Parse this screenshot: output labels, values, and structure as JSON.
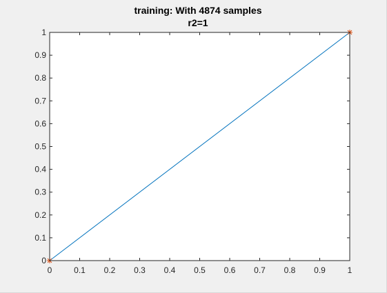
{
  "chart_data": {
    "type": "line",
    "title_line1": "training: With 4874 samples",
    "title_line2": "r2=1",
    "xlabel": "",
    "ylabel": "",
    "xlim": [
      0,
      1
    ],
    "ylim": [
      0,
      1
    ],
    "xticks": [
      0,
      0.1,
      0.2,
      0.3,
      0.4,
      0.5,
      0.6,
      0.7,
      0.8,
      0.9,
      1
    ],
    "xtick_labels": [
      "0",
      "0.1",
      "0.2",
      "0.3",
      "0.4",
      "0.5",
      "0.6",
      "0.7",
      "0.8",
      "0.9",
      "1"
    ],
    "yticks": [
      0,
      0.1,
      0.2,
      0.3,
      0.4,
      0.5,
      0.6,
      0.7,
      0.8,
      0.9,
      1
    ],
    "ytick_labels": [
      "0",
      "0.1",
      "0.2",
      "0.3",
      "0.4",
      "0.5",
      "0.6",
      "0.7",
      "0.8",
      "0.9",
      "1"
    ],
    "grid": false,
    "legend": false,
    "series": [
      {
        "style": "line",
        "color": "#0072bd",
        "x": [
          0,
          1
        ],
        "y": [
          0,
          1
        ]
      },
      {
        "style": "star-markers",
        "color": "#d95319",
        "x": [
          0,
          1
        ],
        "y": [
          0,
          1
        ]
      }
    ]
  },
  "colors": {
    "window_background": "#f0f0f0",
    "axes_background": "#ffffff",
    "axes_line": "#262626"
  }
}
